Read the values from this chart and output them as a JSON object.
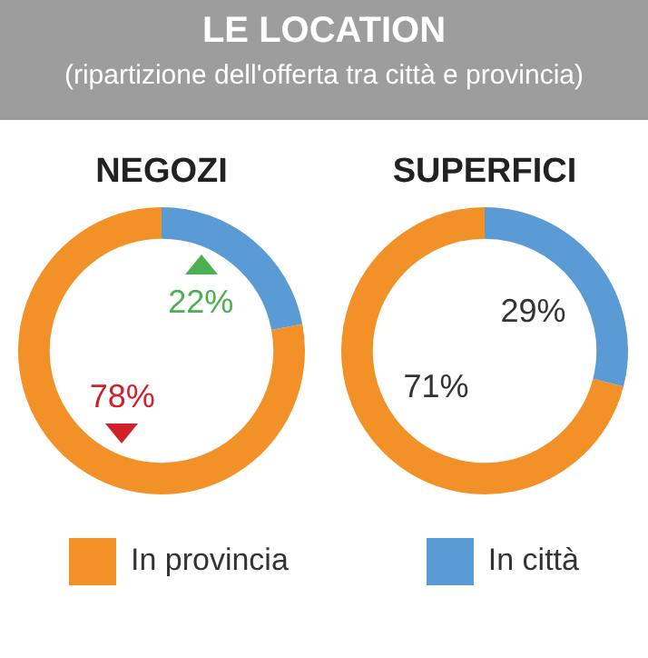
{
  "chart_data": [
    {
      "type": "other",
      "title": "LE LOCATION",
      "subtitle": "(ripartizione dell'offerta tra città e provincia)"
    },
    {
      "type": "donut",
      "title": "NEGOZI",
      "categories": [
        "In provincia",
        "In città"
      ],
      "values": [
        78,
        22
      ],
      "colors": [
        "#f39129",
        "#5b9bd5"
      ],
      "value_labels": [
        "78%",
        "22%"
      ],
      "legend": "bottom"
    },
    {
      "type": "donut",
      "title": "SUPERFICI",
      "categories": [
        null,
        null
      ],
      "values": [
        71,
        29
      ],
      "colors": [
        "#f39129",
        "#5b9bd5"
      ],
      "value_labels": [
        "71%",
        "29%"
      ]
    }
  ]
}
